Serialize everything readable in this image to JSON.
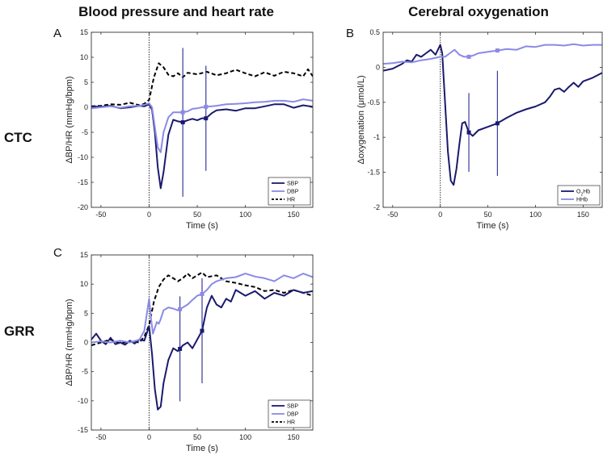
{
  "headers": {
    "bp_hr": "Blood pressure and heart rate",
    "oxy": "Cerebral oxygenation"
  },
  "rows": {
    "top": "CTC",
    "bottom": "GRR"
  },
  "colors": {
    "sbp": "#1a1a6e",
    "dbp": "#8a8ae6",
    "hr": "#000000",
    "o2hb": "#1a1a6e",
    "hhb": "#8a8ae6",
    "vline": "#3a3aa0"
  },
  "chart_data": [
    {
      "panel": "A",
      "type": "line",
      "xlabel": "Time (s)",
      "ylabel": "ΔBP/HR (mmHg/bpm)",
      "xlim": [
        -60,
        170
      ],
      "ylim": [
        -20,
        15
      ],
      "xticks": [
        "-50",
        "0",
        "50",
        "100",
        "150"
      ],
      "yticks": [
        "-20",
        "-15",
        "-10",
        "-5",
        "0",
        "5",
        "10",
        "15"
      ],
      "event_line_x": 0,
      "markers": [
        35,
        59
      ],
      "legend": [
        "SBP",
        "DBP",
        "HR"
      ],
      "series": [
        {
          "name": "SBP",
          "x": [
            -60,
            -50,
            -40,
            -30,
            -20,
            -10,
            -5,
            0,
            3,
            6,
            9,
            12,
            15,
            20,
            25,
            30,
            35,
            40,
            45,
            50,
            55,
            59,
            65,
            70,
            80,
            90,
            100,
            110,
            120,
            130,
            140,
            150,
            160,
            170
          ],
          "y": [
            0.2,
            0.1,
            0.3,
            -0.2,
            0,
            0.3,
            0.2,
            0.6,
            -0.5,
            -5,
            -12,
            -16.2,
            -13,
            -5.5,
            -2.5,
            -2.8,
            -3,
            -2.6,
            -2.3,
            -2.6,
            -2.2,
            -2.2,
            -1.2,
            -0.6,
            -0.4,
            -0.7,
            -0.2,
            -0.2,
            0.2,
            0.6,
            0.6,
            -0.1,
            0.4,
            0.1
          ]
        },
        {
          "name": "DBP",
          "x": [
            -60,
            -50,
            -40,
            -30,
            -20,
            -10,
            -5,
            0,
            3,
            6,
            9,
            12,
            15,
            20,
            25,
            30,
            35,
            40,
            45,
            50,
            55,
            59,
            65,
            70,
            80,
            90,
            100,
            110,
            120,
            130,
            140,
            150,
            160,
            170
          ],
          "y": [
            -0.2,
            0,
            0.2,
            -0.1,
            0.2,
            0.3,
            0.5,
            0.8,
            0,
            -4,
            -8,
            -9,
            -5,
            -2,
            -1,
            -1,
            -1,
            -0.8,
            -0.3,
            -0.2,
            0,
            0.1,
            0.2,
            0.3,
            0.6,
            0.7,
            0.8,
            1,
            1.1,
            1.3,
            1.3,
            1.1,
            1.6,
            1.3
          ]
        },
        {
          "name": "HR",
          "x": [
            -60,
            -50,
            -40,
            -30,
            -20,
            -10,
            -5,
            0,
            5,
            10,
            15,
            20,
            25,
            30,
            35,
            40,
            50,
            60,
            70,
            80,
            90,
            100,
            110,
            120,
            130,
            140,
            150,
            160,
            165,
            170
          ],
          "y": [
            0.2,
            0.3,
            0.6,
            0.5,
            0.9,
            0.4,
            0.7,
            1.5,
            6,
            8.8,
            8,
            6.5,
            6.2,
            6.8,
            6,
            6.9,
            6.6,
            7.1,
            6.4,
            6.8,
            7.5,
            6.8,
            6.2,
            7,
            6.3,
            7.1,
            6.8,
            6.2,
            7.6,
            6.2
          ]
        }
      ]
    },
    {
      "panel": "B",
      "type": "line",
      "xlabel": "Time (s)",
      "ylabel": "Δoxygenation (μmol/L)",
      "xlim": [
        -60,
        170
      ],
      "ylim": [
        -2,
        0.5
      ],
      "xticks": [
        "-50",
        "0",
        "50",
        "100",
        "150"
      ],
      "yticks": [
        "-2",
        "-1.5",
        "-1",
        "-0.5",
        "0",
        "0.5"
      ],
      "event_line_x": 0,
      "markers": [
        30,
        60
      ],
      "legend": [
        "O2Hb",
        "HHb"
      ],
      "series": [
        {
          "name": "O2Hb",
          "x": [
            -60,
            -50,
            -40,
            -35,
            -30,
            -25,
            -20,
            -15,
            -10,
            -5,
            0,
            2,
            5,
            8,
            11,
            14,
            17,
            20,
            23,
            26,
            30,
            34,
            40,
            50,
            60,
            70,
            80,
            90,
            100,
            110,
            115,
            120,
            125,
            130,
            135,
            140,
            145,
            150,
            160,
            170
          ],
          "y": [
            -0.05,
            -0.02,
            0.05,
            0.1,
            0.08,
            0.18,
            0.15,
            0.2,
            0.25,
            0.18,
            0.32,
            0.2,
            -0.5,
            -1.2,
            -1.62,
            -1.68,
            -1.45,
            -1.1,
            -0.8,
            -0.78,
            -0.93,
            -0.98,
            -0.9,
            -0.85,
            -0.8,
            -0.72,
            -0.65,
            -0.6,
            -0.56,
            -0.5,
            -0.42,
            -0.32,
            -0.3,
            -0.35,
            -0.28,
            -0.22,
            -0.28,
            -0.2,
            -0.15,
            -0.08
          ]
        },
        {
          "name": "HHb",
          "x": [
            -60,
            -50,
            -40,
            -30,
            -20,
            -10,
            0,
            5,
            10,
            15,
            20,
            25,
            30,
            35,
            40,
            50,
            60,
            70,
            80,
            90,
            100,
            110,
            120,
            130,
            140,
            150,
            160,
            170
          ],
          "y": [
            0.05,
            0.06,
            0.08,
            0.07,
            0.1,
            0.12,
            0.15,
            0.15,
            0.2,
            0.25,
            0.18,
            0.15,
            0.15,
            0.17,
            0.2,
            0.22,
            0.24,
            0.26,
            0.25,
            0.3,
            0.29,
            0.32,
            0.32,
            0.31,
            0.33,
            0.31,
            0.32,
            0.32
          ]
        }
      ]
    },
    {
      "panel": "C",
      "type": "line",
      "xlabel": "Time (s)",
      "ylabel": "ΔBP/HR (mmHg/bpm)",
      "xlim": [
        -60,
        170
      ],
      "ylim": [
        -15,
        15
      ],
      "xticks": [
        "-50",
        "0",
        "50",
        "100",
        "150"
      ],
      "yticks": [
        "-15",
        "-10",
        "-5",
        "0",
        "5",
        "10",
        "15"
      ],
      "event_line_x": 0,
      "markers": [
        32,
        55
      ],
      "legend": [
        "SBP",
        "DBP",
        "HR"
      ],
      "series": [
        {
          "name": "SBP",
          "x": [
            -60,
            -55,
            -50,
            -45,
            -40,
            -35,
            -30,
            -25,
            -20,
            -15,
            -10,
            -5,
            0,
            3,
            6,
            9,
            12,
            15,
            20,
            25,
            30,
            35,
            40,
            45,
            50,
            55,
            60,
            65,
            70,
            75,
            80,
            85,
            90,
            95,
            100,
            110,
            120,
            130,
            140,
            150,
            160,
            170
          ],
          "y": [
            0.5,
            1.5,
            0.3,
            -0.3,
            0.8,
            -0.3,
            0,
            -0.4,
            0.3,
            -0.2,
            0.5,
            0.3,
            2.8,
            -2,
            -8,
            -11.5,
            -11,
            -7,
            -3,
            -1,
            -1.5,
            -0.5,
            0,
            -1,
            0.5,
            2,
            6,
            8,
            6.5,
            6,
            7.5,
            7,
            9,
            8.5,
            8,
            8.8,
            7.5,
            8.5,
            8,
            9,
            8.5,
            8.8
          ]
        },
        {
          "name": "DBP",
          "x": [
            -60,
            -50,
            -40,
            -30,
            -20,
            -10,
            -5,
            0,
            2,
            4,
            6,
            8,
            10,
            12,
            15,
            20,
            25,
            30,
            35,
            40,
            45,
            50,
            55,
            60,
            65,
            70,
            80,
            90,
            100,
            110,
            120,
            130,
            140,
            150,
            160,
            170
          ],
          "y": [
            0,
            0.2,
            0,
            0.3,
            0,
            0.5,
            2,
            7.5,
            4,
            1.5,
            2.5,
            3.5,
            3.2,
            4,
            5.5,
            6,
            5.8,
            5.5,
            6,
            6.5,
            7.3,
            8,
            8.3,
            9,
            10,
            10.5,
            11,
            11.2,
            11.8,
            11.3,
            11,
            10.5,
            11.5,
            11,
            11.8,
            11.2
          ]
        },
        {
          "name": "HR",
          "x": [
            -60,
            -50,
            -40,
            -30,
            -20,
            -10,
            -5,
            0,
            5,
            10,
            15,
            20,
            25,
            30,
            35,
            40,
            45,
            50,
            55,
            60,
            70,
            80,
            90,
            100,
            110,
            120,
            130,
            140,
            150,
            160,
            170
          ],
          "y": [
            -0.5,
            0,
            0.5,
            -0.2,
            0.2,
            0,
            1,
            3,
            7,
            9.5,
            10.8,
            11.5,
            11,
            10.5,
            11,
            11.8,
            11,
            11.5,
            12,
            11.2,
            11.5,
            10.5,
            10.2,
            9.8,
            9.5,
            8.8,
            9,
            8.5,
            9,
            8.5,
            8
          ]
        }
      ]
    }
  ]
}
